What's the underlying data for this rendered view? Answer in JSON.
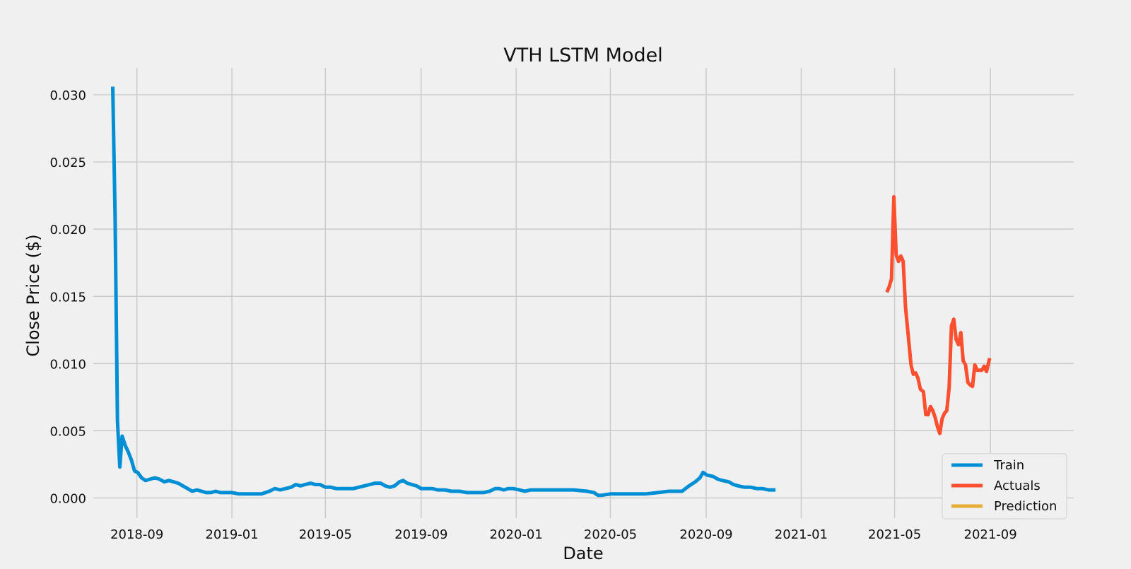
{
  "chart_data": {
    "type": "line",
    "title": "VTH LSTM Model",
    "xlabel": "Date",
    "ylabel": "Close Price ($)",
    "xlim": [
      "2018-07-07",
      "2021-12-17"
    ],
    "ylim": [
      -0.0015,
      0.032
    ],
    "x_ticks": [
      "2018-09",
      "2019-01",
      "2019-05",
      "2019-09",
      "2020-01",
      "2020-05",
      "2020-09",
      "2021-01",
      "2021-05",
      "2021-09"
    ],
    "y_ticks": [
      "0.000",
      "0.005",
      "0.010",
      "0.015",
      "0.020",
      "0.025",
      "0.030"
    ],
    "grid": true,
    "legend_position": "lower-right",
    "series": [
      {
        "name": "Train",
        "color": "#008fd5",
        "points": [
          [
            "2018-08-01",
            0.0306
          ],
          [
            "2018-08-04",
            0.021
          ],
          [
            "2018-08-07",
            0.0057
          ],
          [
            "2018-08-10",
            0.0023
          ],
          [
            "2018-08-13",
            0.0046
          ],
          [
            "2018-08-17",
            0.0039
          ],
          [
            "2018-08-21",
            0.0034
          ],
          [
            "2018-08-25",
            0.0028
          ],
          [
            "2018-08-29",
            0.002
          ],
          [
            "2018-09-02",
            0.0019
          ],
          [
            "2018-09-07",
            0.0015
          ],
          [
            "2018-09-12",
            0.0013
          ],
          [
            "2018-09-18",
            0.0014
          ],
          [
            "2018-09-24",
            0.0015
          ],
          [
            "2018-09-30",
            0.0014
          ],
          [
            "2018-10-06",
            0.0012
          ],
          [
            "2018-10-12",
            0.0013
          ],
          [
            "2018-10-18",
            0.0012
          ],
          [
            "2018-10-24",
            0.0011
          ],
          [
            "2018-10-30",
            0.0009
          ],
          [
            "2018-11-05",
            0.0007
          ],
          [
            "2018-11-11",
            0.0005
          ],
          [
            "2018-11-17",
            0.0006
          ],
          [
            "2018-11-23",
            0.0005
          ],
          [
            "2018-11-29",
            0.0004
          ],
          [
            "2018-12-05",
            0.0004
          ],
          [
            "2018-12-11",
            0.0005
          ],
          [
            "2018-12-17",
            0.0004
          ],
          [
            "2018-12-23",
            0.0004
          ],
          [
            "2019-01-01",
            0.0004
          ],
          [
            "2019-01-10",
            0.0003
          ],
          [
            "2019-01-20",
            0.0003
          ],
          [
            "2019-01-30",
            0.0003
          ],
          [
            "2019-02-08",
            0.0003
          ],
          [
            "2019-02-18",
            0.0005
          ],
          [
            "2019-02-25",
            0.0007
          ],
          [
            "2019-03-04",
            0.0006
          ],
          [
            "2019-03-11",
            0.0007
          ],
          [
            "2019-03-18",
            0.0008
          ],
          [
            "2019-03-24",
            0.001
          ],
          [
            "2019-03-30",
            0.0009
          ],
          [
            "2019-04-05",
            0.001
          ],
          [
            "2019-04-12",
            0.0011
          ],
          [
            "2019-04-18",
            0.001
          ],
          [
            "2019-04-24",
            0.001
          ],
          [
            "2019-05-01",
            0.0008
          ],
          [
            "2019-05-08",
            0.0008
          ],
          [
            "2019-05-15",
            0.0007
          ],
          [
            "2019-05-22",
            0.0007
          ],
          [
            "2019-05-30",
            0.0007
          ],
          [
            "2019-06-06",
            0.0007
          ],
          [
            "2019-06-13",
            0.0008
          ],
          [
            "2019-06-20",
            0.0009
          ],
          [
            "2019-06-27",
            0.001
          ],
          [
            "2019-07-04",
            0.0011
          ],
          [
            "2019-07-11",
            0.0011
          ],
          [
            "2019-07-17",
            0.0009
          ],
          [
            "2019-07-23",
            0.0008
          ],
          [
            "2019-07-29",
            0.0009
          ],
          [
            "2019-08-04",
            0.0012
          ],
          [
            "2019-08-09",
            0.0013
          ],
          [
            "2019-08-14",
            0.0011
          ],
          [
            "2019-08-20",
            0.001
          ],
          [
            "2019-08-26",
            0.0009
          ],
          [
            "2019-09-01",
            0.0007
          ],
          [
            "2019-09-08",
            0.0007
          ],
          [
            "2019-09-15",
            0.0007
          ],
          [
            "2019-09-22",
            0.0006
          ],
          [
            "2019-10-01",
            0.0006
          ],
          [
            "2019-10-10",
            0.0005
          ],
          [
            "2019-10-20",
            0.0005
          ],
          [
            "2019-10-30",
            0.0004
          ],
          [
            "2019-11-10",
            0.0004
          ],
          [
            "2019-11-20",
            0.0004
          ],
          [
            "2019-11-28",
            0.0005
          ],
          [
            "2019-12-05",
            0.0007
          ],
          [
            "2019-12-10",
            0.0007
          ],
          [
            "2019-12-16",
            0.0006
          ],
          [
            "2019-12-22",
            0.0007
          ],
          [
            "2019-12-28",
            0.0007
          ],
          [
            "2020-01-05",
            0.0006
          ],
          [
            "2020-01-12",
            0.0005
          ],
          [
            "2020-01-20",
            0.0006
          ],
          [
            "2020-02-01",
            0.0006
          ],
          [
            "2020-02-15",
            0.0006
          ],
          [
            "2020-03-01",
            0.0006
          ],
          [
            "2020-03-15",
            0.0006
          ],
          [
            "2020-04-01",
            0.0005
          ],
          [
            "2020-04-10",
            0.0004
          ],
          [
            "2020-04-15",
            0.0002
          ],
          [
            "2020-04-20",
            0.0002
          ],
          [
            "2020-05-01",
            0.0003
          ],
          [
            "2020-05-15",
            0.0003
          ],
          [
            "2020-06-01",
            0.0003
          ],
          [
            "2020-06-15",
            0.0003
          ],
          [
            "2020-07-01",
            0.0004
          ],
          [
            "2020-07-15",
            0.0005
          ],
          [
            "2020-08-01",
            0.0005
          ],
          [
            "2020-08-10",
            0.0009
          ],
          [
            "2020-08-18",
            0.0012
          ],
          [
            "2020-08-24",
            0.0015
          ],
          [
            "2020-08-28",
            0.0019
          ],
          [
            "2020-09-02",
            0.0017
          ],
          [
            "2020-09-10",
            0.0016
          ],
          [
            "2020-09-16",
            0.0014
          ],
          [
            "2020-09-22",
            0.0013
          ],
          [
            "2020-09-30",
            0.0012
          ],
          [
            "2020-10-06",
            0.001
          ],
          [
            "2020-10-12",
            0.0009
          ],
          [
            "2020-10-20",
            0.0008
          ],
          [
            "2020-10-28",
            0.0008
          ],
          [
            "2020-11-05",
            0.0007
          ],
          [
            "2020-11-12",
            0.0007
          ],
          [
            "2020-11-20",
            0.0006
          ],
          [
            "2020-11-29",
            0.0006
          ]
        ]
      },
      {
        "name": "Actuals",
        "color": "#fc4f30",
        "points": [
          [
            "2021-04-21",
            0.0153
          ],
          [
            "2021-04-24",
            0.0157
          ],
          [
            "2021-04-27",
            0.0163
          ],
          [
            "2021-04-30",
            0.0224
          ],
          [
            "2021-05-03",
            0.0181
          ],
          [
            "2021-05-06",
            0.0176
          ],
          [
            "2021-05-09",
            0.018
          ],
          [
            "2021-05-12",
            0.0176
          ],
          [
            "2021-05-15",
            0.0142
          ],
          [
            "2021-05-19",
            0.0118
          ],
          [
            "2021-05-22",
            0.0099
          ],
          [
            "2021-05-25",
            0.0092
          ],
          [
            "2021-05-28",
            0.0093
          ],
          [
            "2021-05-31",
            0.0089
          ],
          [
            "2021-06-03",
            0.0081
          ],
          [
            "2021-06-07",
            0.0079
          ],
          [
            "2021-06-10",
            0.0062
          ],
          [
            "2021-06-13",
            0.0062
          ],
          [
            "2021-06-16",
            0.0068
          ],
          [
            "2021-06-19",
            0.0065
          ],
          [
            "2021-06-22",
            0.006
          ],
          [
            "2021-06-25",
            0.0053
          ],
          [
            "2021-06-28",
            0.0048
          ],
          [
            "2021-07-01",
            0.0059
          ],
          [
            "2021-07-04",
            0.0063
          ],
          [
            "2021-07-07",
            0.0065
          ],
          [
            "2021-07-10",
            0.0082
          ],
          [
            "2021-07-13",
            0.0128
          ],
          [
            "2021-07-16",
            0.0133
          ],
          [
            "2021-07-19",
            0.0118
          ],
          [
            "2021-07-22",
            0.0114
          ],
          [
            "2021-07-25",
            0.0123
          ],
          [
            "2021-07-28",
            0.0102
          ],
          [
            "2021-07-31",
            0.0099
          ],
          [
            "2021-08-03",
            0.0086
          ],
          [
            "2021-08-06",
            0.0084
          ],
          [
            "2021-08-09",
            0.0083
          ],
          [
            "2021-08-12",
            0.0099
          ],
          [
            "2021-08-15",
            0.0095
          ],
          [
            "2021-08-18",
            0.0095
          ],
          [
            "2021-08-21",
            0.0095
          ],
          [
            "2021-08-24",
            0.0098
          ],
          [
            "2021-08-27",
            0.0094
          ],
          [
            "2021-08-31",
            0.0104
          ]
        ]
      },
      {
        "name": "Prediction",
        "color": "#e5ae38",
        "points": []
      }
    ]
  }
}
